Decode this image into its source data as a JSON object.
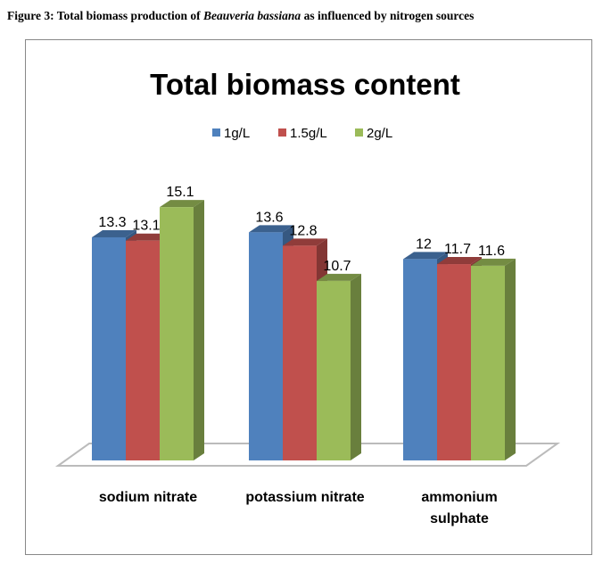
{
  "caption": {
    "prefix": "Figure 3: Total biomass production of ",
    "species": "Beauveria bassiana",
    "suffix": " as influenced  by nitrogen sources"
  },
  "chart_data": {
    "type": "bar",
    "title": "Total biomass content",
    "categories": [
      "sodium nitrate",
      "potassium nitrate",
      "ammonium sulphate"
    ],
    "series": [
      {
        "name": "1g/L",
        "values": [
          13.3,
          13.6,
          12
        ],
        "color": "#4F81BD"
      },
      {
        "name": "1.5g/L",
        "values": [
          13.1,
          12.8,
          11.7
        ],
        "color": "#C0504D"
      },
      {
        "name": "2g/L",
        "values": [
          15.1,
          10.7,
          11.6
        ],
        "color": "#9BBB59"
      }
    ],
    "legend": "top",
    "grid": false,
    "ylim": [
      0,
      16
    ]
  }
}
